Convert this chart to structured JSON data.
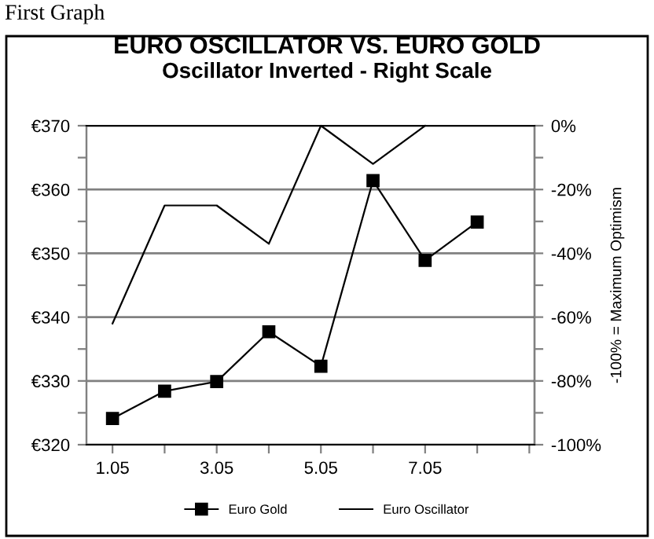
{
  "chart_data": {
    "type": "line",
    "title": "EURO OSCILLATOR VS. EURO GOLD",
    "subtitle": "Oscillator Inverted - Right Scale",
    "y2label": "-100% = Maximum Optimism",
    "annotations": [
      "First Graph"
    ],
    "categories": [
      "1.05",
      null,
      "3.05",
      null,
      "5.05",
      null,
      "7.05",
      null,
      null
    ],
    "series": [
      {
        "name": "Euro Gold",
        "color": "#000000",
        "marker": "square",
        "values": [
          324.1,
          328.4,
          329.9,
          337.7,
          332.3,
          361.4,
          348.9,
          354.9,
          null
        ]
      },
      {
        "name": "Euro Oscillator",
        "color": "#000000",
        "marker": "none",
        "axis": "y2",
        "values": [
          -62,
          -25,
          -25,
          -37,
          0,
          -12,
          0,
          null,
          null
        ]
      }
    ],
    "ylim": [
      320,
      370
    ],
    "yticks": [
      {
        "value": 320,
        "label": "€320"
      },
      {
        "value": 325,
        "label": null
      },
      {
        "value": 330,
        "label": "€330"
      },
      {
        "value": 335,
        "label": null
      },
      {
        "value": 340,
        "label": "€340"
      },
      {
        "value": 345,
        "label": null
      },
      {
        "value": 350,
        "label": "€350"
      },
      {
        "value": 355,
        "label": null
      },
      {
        "value": 360,
        "label": "€360"
      },
      {
        "value": 365,
        "label": null
      },
      {
        "value": 370,
        "label": "€370"
      }
    ],
    "y2lim": [
      -100,
      0
    ],
    "y2ticks": [
      {
        "value": -100,
        "label": "-100%"
      },
      {
        "value": -90,
        "label": null
      },
      {
        "value": -80,
        "label": "-80%"
      },
      {
        "value": -70,
        "label": null
      },
      {
        "value": -60,
        "label": "-60%"
      },
      {
        "value": -50,
        "label": null
      },
      {
        "value": -40,
        "label": "-40%"
      },
      {
        "value": -30,
        "label": null
      },
      {
        "value": -20,
        "label": "-20%"
      },
      {
        "value": -10,
        "label": null
      },
      {
        "value": 0,
        "label": "0%"
      }
    ],
    "grid": "y",
    "legend": "bottom",
    "line_style": "solid"
  }
}
